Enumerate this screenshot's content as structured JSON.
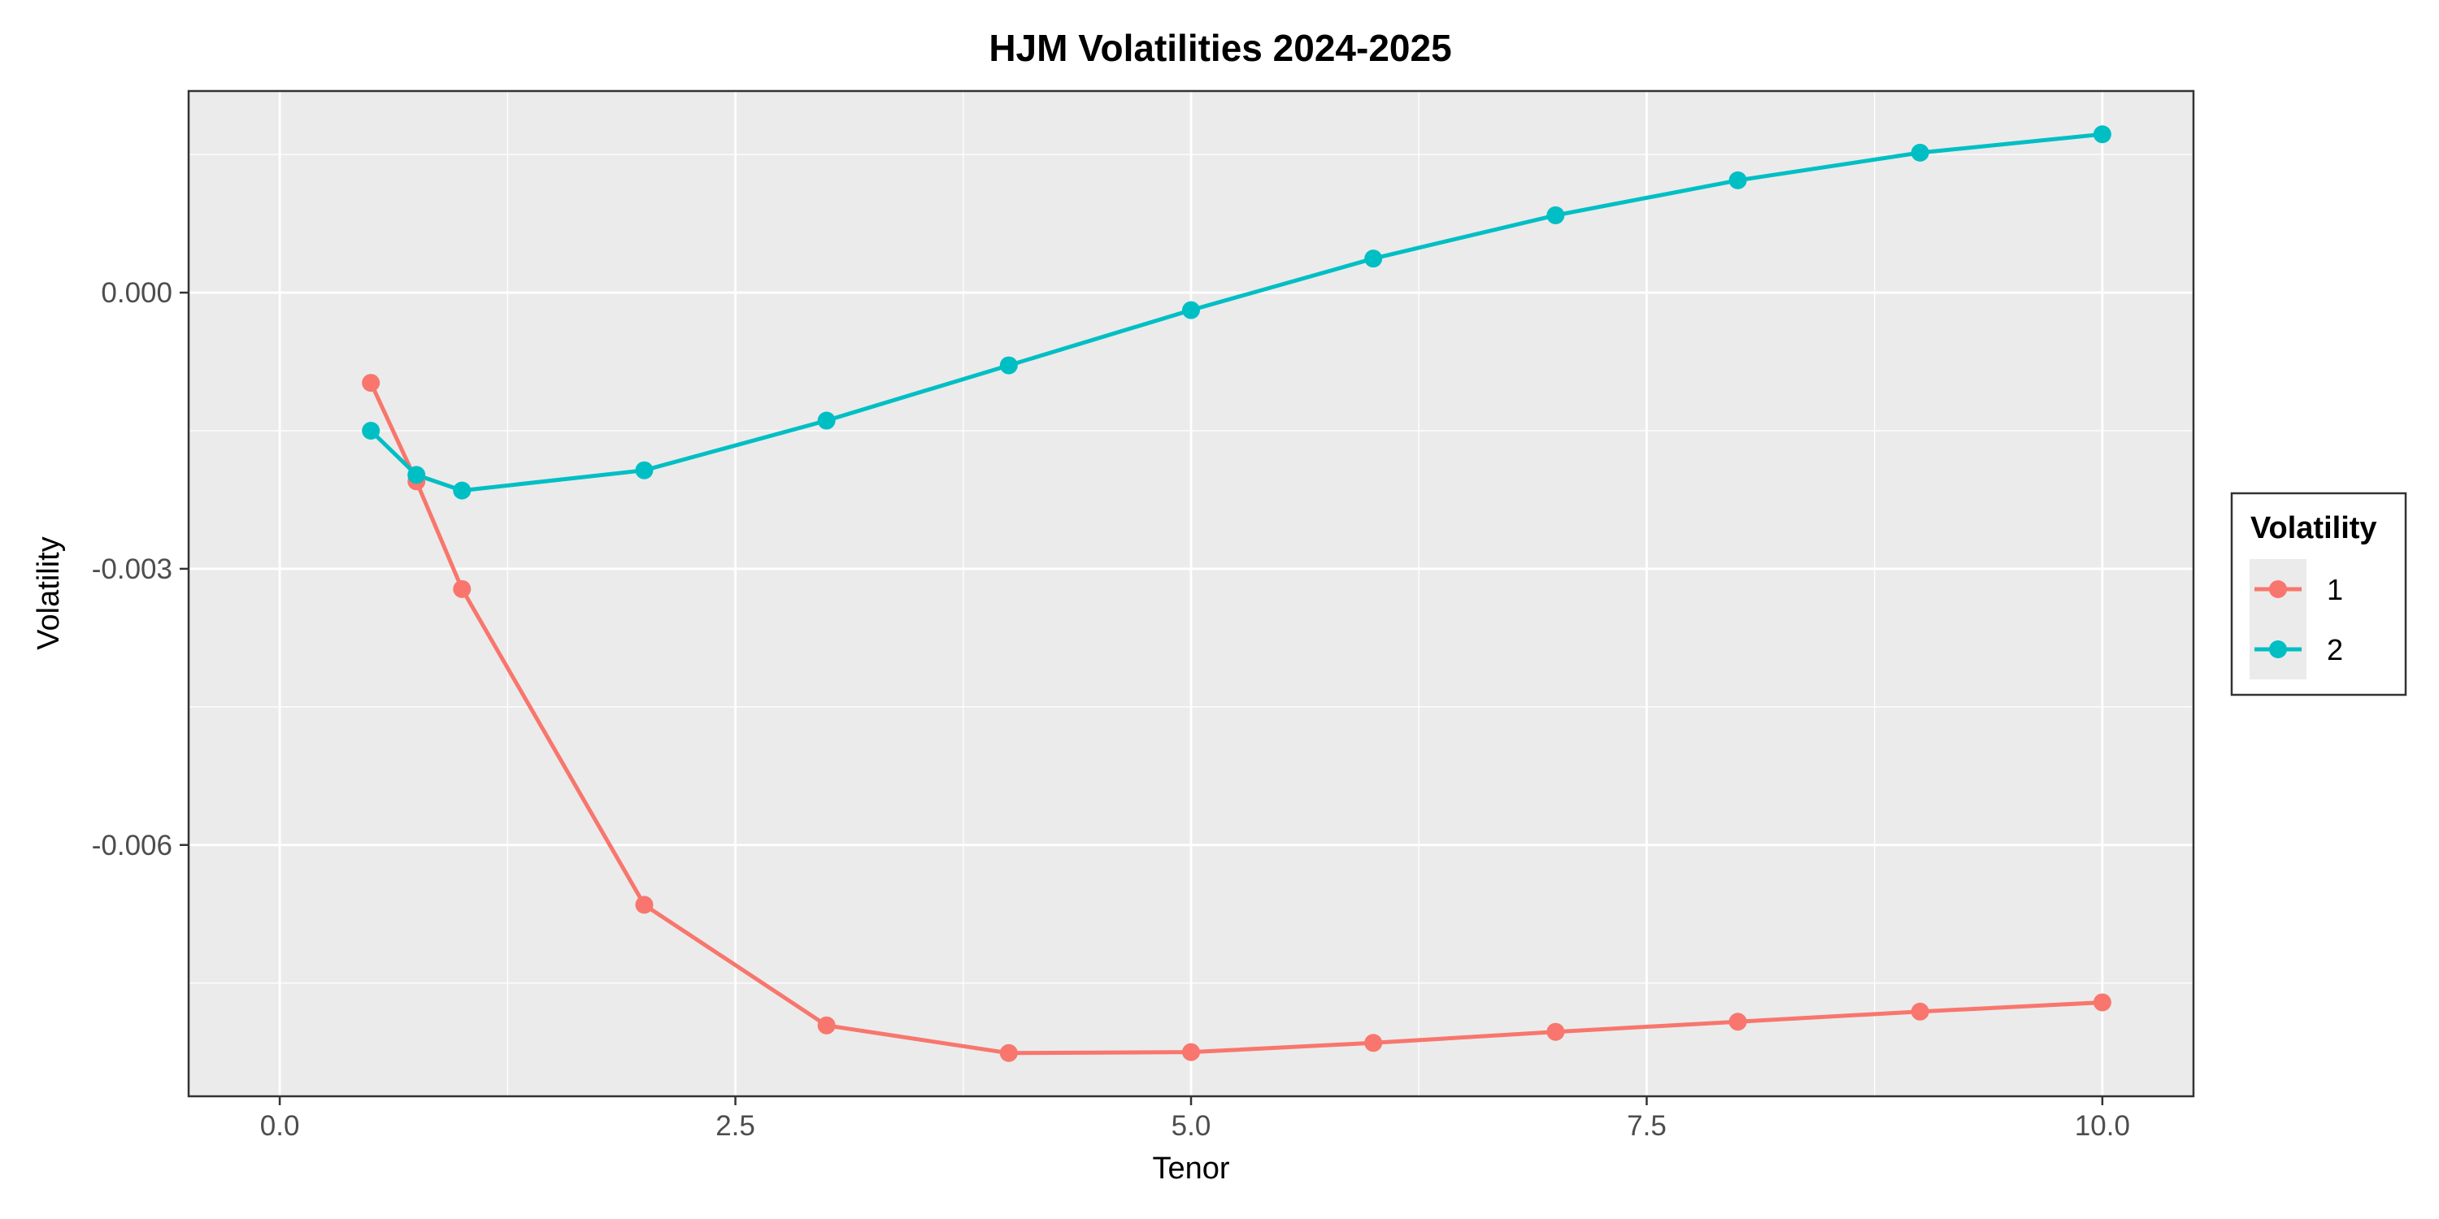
{
  "chart_data": {
    "type": "line",
    "title": "HJM Volatilities 2024-2025",
    "xlabel": "Tenor",
    "ylabel": "Volatility",
    "xlim": [
      -0.5,
      10.5
    ],
    "ylim": [
      -0.00873,
      0.00219
    ],
    "x_ticks": [
      0.0,
      2.5,
      5.0,
      7.5,
      10.0
    ],
    "x_tick_labels": [
      "0.0",
      "2.5",
      "5.0",
      "7.5",
      "10.0"
    ],
    "y_ticks": [
      -0.006,
      -0.003,
      0.0
    ],
    "y_tick_labels": [
      "-0.006",
      "-0.003",
      "0.000"
    ],
    "grid": true,
    "legend": {
      "title": "Volatility",
      "placement": "right"
    },
    "series": [
      {
        "name": "1",
        "color": "#F8766D",
        "x": [
          0.5,
          0.75,
          1,
          2,
          3,
          4,
          5,
          6,
          7,
          8,
          9,
          10
        ],
        "y": [
          -0.00098,
          -0.00205,
          -0.00322,
          -0.00665,
          -0.00796,
          -0.00826,
          -0.00825,
          -0.00815,
          -0.00803,
          -0.00792,
          -0.00781,
          -0.00771
        ]
      },
      {
        "name": "2",
        "color": "#00BFC4",
        "x": [
          0.5,
          0.75,
          1,
          2,
          3,
          4,
          5,
          6,
          7,
          8,
          9,
          10
        ],
        "y": [
          -0.0015,
          -0.00198,
          -0.00215,
          -0.00193,
          -0.00139,
          -0.00079,
          -0.00019,
          0.00037,
          0.00084,
          0.00122,
          0.00152,
          0.00172
        ]
      }
    ]
  }
}
